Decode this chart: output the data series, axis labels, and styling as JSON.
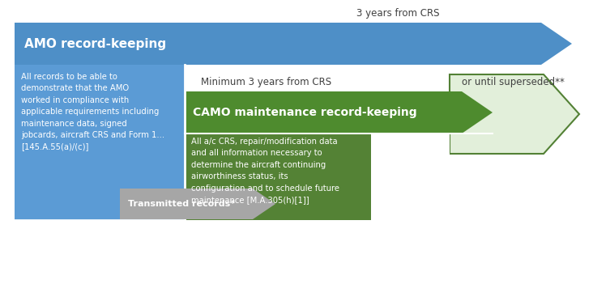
{
  "bg_color": "#ffffff",
  "amo_arrow_color": "#4e8fc7",
  "camo_dark_green": "#4e8b2e",
  "camo_light_green_fill": "#e2efda",
  "camo_light_green_edge": "#538135",
  "amo_box_color": "#5b9bd5",
  "camo_box_color": "#548235",
  "transmitted_arrow_color": "#a6a6a6",
  "amo_title": "AMO record-keeping",
  "camo_title": "CAMO maintenance record-keeping",
  "amo_label": "3 years from CRS",
  "camo_label1": "Minimum 3 years from CRS",
  "camo_label2": "or until superseded**",
  "transmitted_label": "Transmitted records*",
  "amo_text": "All records to be able to\ndemonstrate that the AMO\nworked in compliance with\napplicable requirements including\nmaintenance data, signed\njobcards, aircraft CRS and Form 1...\n[145.A.55(a)/(c)]",
  "camo_text": "All a/c CRS, repair/modification data\nand all information necessary to\ndetermine the aircraft continuing\nairworthiness status, its\nconfiguration and to schedule future\nmaintenance [M.A.305(h)[1]]"
}
